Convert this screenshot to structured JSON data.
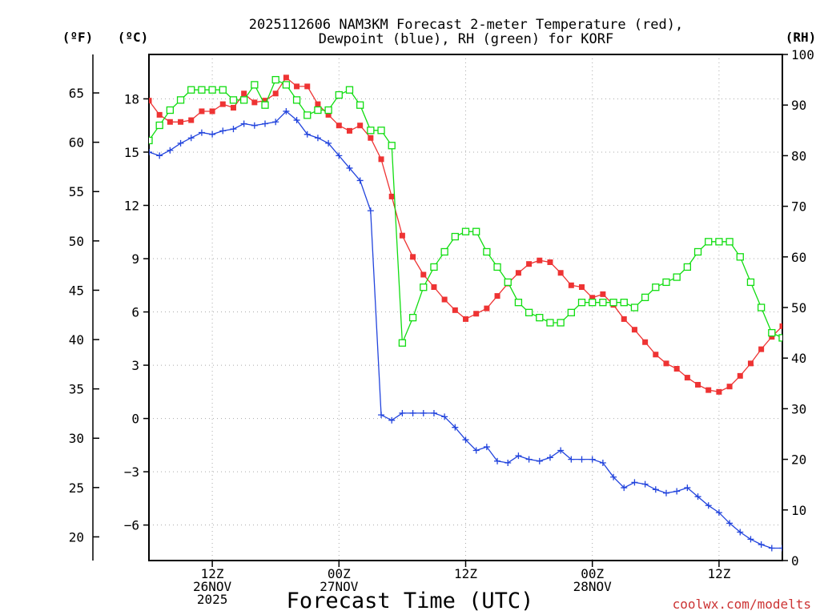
{
  "chart_data": {
    "type": "line",
    "title_line1": "2025112606 NAM3KM Forecast 2-meter Temperature (red),",
    "title_line2": "Dewpoint (blue), RH (green) for KORF",
    "xlabel": "Forecast Time (UTC)",
    "unit_f": "(ºF)",
    "unit_c": "(ºC)",
    "unit_rh": "(RH)",
    "credit": "coolwx.com/modelts",
    "colors": {
      "temperature": "#ee3333",
      "dewpoint": "#2244dd",
      "rh": "#11dd11",
      "grid": "#aaaaaa",
      "credit": "#cc3333"
    },
    "x_range_hours": [
      0,
      60
    ],
    "ylim_c": [
      -8.0,
      20.5
    ],
    "ylim_rh": [
      0,
      100
    ],
    "x_ticks": [
      {
        "hour": 6,
        "line1": "12Z",
        "line2": "26NOV",
        "line3": "2025"
      },
      {
        "hour": 18,
        "line1": "00Z",
        "line2": "27NOV",
        "line3": ""
      },
      {
        "hour": 30,
        "line1": "12Z",
        "line2": "",
        "line3": ""
      },
      {
        "hour": 42,
        "line1": "00Z",
        "line2": "28NOV",
        "line3": ""
      },
      {
        "hour": 54,
        "line1": "12Z",
        "line2": "",
        "line3": ""
      }
    ],
    "y_ticks_c": [
      "18",
      "15",
      "12",
      "9",
      "6",
      "3",
      "0",
      "−3",
      "−6"
    ],
    "y_ticks_c_values": [
      18,
      15,
      12,
      9,
      6,
      3,
      0,
      -3,
      -6
    ],
    "y_ticks_f": [
      "65",
      "60",
      "55",
      "50",
      "45",
      "40",
      "35",
      "30",
      "25",
      "20"
    ],
    "y_ticks_f_values": [
      65,
      60,
      55,
      50,
      45,
      40,
      35,
      30,
      25,
      20
    ],
    "y_ticks_rh": [
      "100",
      "90",
      "80",
      "70",
      "60",
      "50",
      "40",
      "30",
      "20",
      "10",
      "0"
    ],
    "y_ticks_rh_values": [
      100,
      90,
      80,
      70,
      60,
      50,
      40,
      30,
      20,
      10,
      0
    ],
    "series": [
      {
        "name": "2-meter Temperature (°C)",
        "axis": "c",
        "hours": [
          0,
          1,
          2,
          3,
          4,
          5,
          6,
          7,
          8,
          9,
          10,
          11,
          12,
          13,
          14,
          15,
          16,
          17,
          18,
          19,
          20,
          21,
          22,
          23,
          24,
          25,
          26,
          27,
          28,
          29,
          30,
          31,
          32,
          33,
          34,
          35,
          36,
          37,
          38,
          39,
          40,
          41,
          42,
          43,
          44,
          45,
          46,
          47,
          48,
          49,
          50,
          51,
          52,
          53,
          54,
          55,
          56,
          57,
          58,
          59,
          60
        ],
        "values": [
          17.9,
          17.1,
          16.7,
          16.7,
          16.8,
          17.3,
          17.3,
          17.7,
          17.5,
          18.3,
          17.8,
          17.9,
          18.3,
          19.2,
          18.7,
          18.7,
          17.7,
          17.1,
          16.5,
          16.2,
          16.5,
          15.8,
          14.6,
          12.5,
          10.3,
          9.1,
          8.1,
          7.4,
          6.7,
          6.1,
          5.6,
          5.9,
          6.2,
          6.9,
          7.6,
          8.2,
          8.7,
          8.9,
          8.8,
          8.2,
          7.5,
          7.4,
          6.8,
          7.0,
          6.4,
          5.6,
          5.0,
          4.3,
          3.6,
          3.1,
          2.8,
          2.3,
          1.9,
          1.6,
          1.5,
          1.8,
          2.4,
          3.1,
          3.9,
          4.6,
          5.2
        ]
      },
      {
        "name": "Dewpoint (°C)",
        "axis": "c",
        "hours": [
          0,
          1,
          2,
          3,
          4,
          5,
          6,
          7,
          8,
          9,
          10,
          11,
          12,
          13,
          14,
          15,
          16,
          17,
          18,
          19,
          20,
          21,
          22,
          23,
          24,
          25,
          26,
          27,
          28,
          29,
          30,
          31,
          32,
          33,
          34,
          35,
          36,
          37,
          38,
          39,
          40,
          41,
          42,
          43,
          44,
          45,
          46,
          47,
          48,
          49,
          50,
          51,
          52,
          53,
          54,
          55,
          56,
          57,
          58,
          59,
          60
        ],
        "values": [
          15.0,
          14.8,
          15.1,
          15.5,
          15.8,
          16.1,
          16.0,
          16.2,
          16.3,
          16.6,
          16.5,
          16.6,
          16.7,
          17.3,
          16.8,
          16.0,
          15.8,
          15.5,
          14.8,
          14.1,
          13.4,
          11.7,
          0.2,
          -0.1,
          0.3,
          0.3,
          0.3,
          0.3,
          0.1,
          -0.5,
          -1.2,
          -1.8,
          -1.6,
          -2.4,
          -2.5,
          -2.1,
          -2.3,
          -2.4,
          -2.2,
          -1.8,
          -2.3,
          -2.3,
          -2.3,
          -2.5,
          -3.3,
          -3.9,
          -3.6,
          -3.7,
          -4.0,
          -4.2,
          -4.1,
          -3.9,
          -4.4,
          -4.9,
          -5.3,
          -5.9,
          -6.4,
          -6.8,
          -7.1,
          -7.3,
          -7.3
        ]
      },
      {
        "name": "RH (%)",
        "axis": "rh",
        "hours": [
          0,
          1,
          2,
          3,
          4,
          5,
          6,
          7,
          8,
          9,
          10,
          11,
          12,
          13,
          14,
          15,
          16,
          17,
          18,
          19,
          20,
          21,
          22,
          23,
          24,
          25,
          26,
          27,
          28,
          29,
          30,
          31,
          32,
          33,
          34,
          35,
          36,
          37,
          38,
          39,
          40,
          41,
          42,
          43,
          44,
          45,
          46,
          47,
          48,
          49,
          50,
          51,
          52,
          53,
          54,
          55,
          56,
          57,
          58,
          59,
          60
        ],
        "values": [
          83,
          86,
          89,
          91,
          93,
          93,
          93,
          93,
          91,
          91,
          94,
          90,
          95,
          94,
          91,
          88,
          89,
          89,
          92,
          93,
          90,
          85,
          85,
          82,
          43,
          48,
          54,
          58,
          61,
          64,
          65,
          65,
          61,
          58,
          55,
          51,
          49,
          48,
          47,
          47,
          49,
          51,
          51,
          51,
          51,
          51,
          50,
          52,
          54,
          55,
          56,
          58,
          61,
          63,
          63,
          63,
          60,
          55,
          50,
          45,
          44
        ]
      }
    ]
  }
}
